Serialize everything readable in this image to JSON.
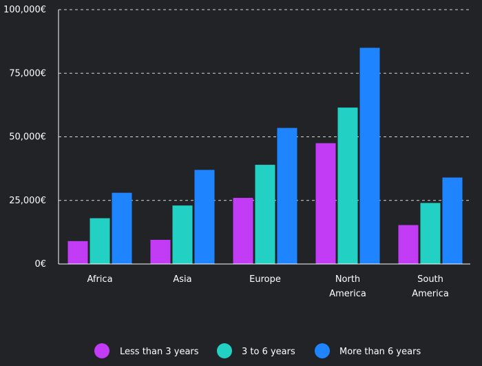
{
  "chart_data": {
    "type": "bar",
    "categories": [
      "Africa",
      "Asia",
      "Europe",
      "North America",
      "South America"
    ],
    "category_lines": [
      [
        "Africa"
      ],
      [
        "Asia"
      ],
      [
        "Europe"
      ],
      [
        "North",
        "America"
      ],
      [
        "South",
        "America"
      ]
    ],
    "series": [
      {
        "name": "Less than 3 years",
        "color": "#c23cf5",
        "values": [
          9000,
          9500,
          26000,
          47500,
          15300
        ]
      },
      {
        "name": "3 to 6 years",
        "color": "#22d0c4",
        "values": [
          18000,
          23000,
          39000,
          61500,
          24000
        ]
      },
      {
        "name": "More than 6 years",
        "color": "#1e84ff",
        "values": [
          28000,
          37000,
          53500,
          85000,
          34000
        ]
      }
    ],
    "ylim": [
      0,
      100000
    ],
    "y_ticks": [
      0,
      25000,
      50000,
      75000,
      100000
    ],
    "y_tick_labels": [
      "0€",
      "25,000€",
      "50,000€",
      "75,000€",
      "100,000€"
    ],
    "grid": true,
    "legend_position": "bottom",
    "background": "#212326"
  }
}
